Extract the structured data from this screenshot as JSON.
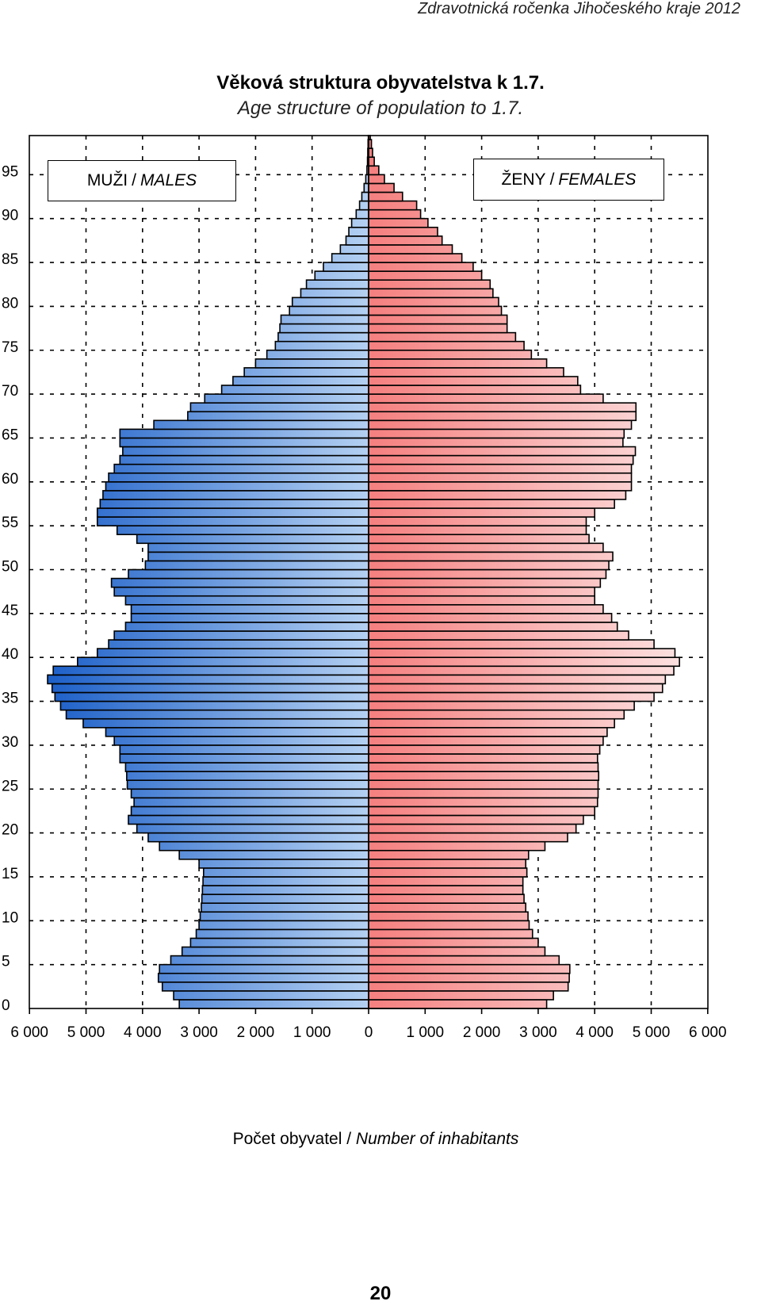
{
  "header": "Zdravotnická ročenka Jihočeského kraje 2012",
  "title": "Věková struktura obyvatelstva k 1.7.",
  "subtitle": "Age structure of population to 1.7.",
  "legend": {
    "males_cz": "MUŽI",
    "sep": "/",
    "males_en": "MALES",
    "females_cz": "ŽENY",
    "females_en": "FEMALES"
  },
  "xlabel": {
    "cz": "Počet obyvatel",
    "sep": "/",
    "en": "Number of inhabitants"
  },
  "page_number": "20",
  "colors": {
    "male_dark": "#1c5fc8",
    "male_light": "#b4d0f2",
    "female_dark": "#f57f7f",
    "female_light": "#fde3e3"
  },
  "chart_data": {
    "type": "bar",
    "orientation": "horizontal",
    "title": "Věková struktura obyvatelstva k 1.7.",
    "xlabel": "Počet obyvatel / Number of inhabitants",
    "ylabel": "",
    "xlim": [
      -6000,
      6000
    ],
    "ylim": [
      0,
      99
    ],
    "grid": true,
    "x_ticks": [
      -6000,
      -5000,
      -4000,
      -3000,
      -2000,
      -1000,
      0,
      1000,
      2000,
      3000,
      4000,
      5000,
      6000
    ],
    "x_tick_labels": [
      "6 000",
      "5 000",
      "4 000",
      "3 000",
      "2 000",
      "1 000",
      "0",
      "1 000",
      "2 000",
      "3 000",
      "4 000",
      "5 000",
      "6 000"
    ],
    "y_ticks": [
      0,
      5,
      10,
      15,
      20,
      25,
      30,
      35,
      40,
      45,
      50,
      55,
      60,
      65,
      70,
      75,
      80,
      85,
      90,
      95
    ],
    "categories": [
      0,
      1,
      2,
      3,
      4,
      5,
      6,
      7,
      8,
      9,
      10,
      11,
      12,
      13,
      14,
      15,
      16,
      17,
      18,
      19,
      20,
      21,
      22,
      23,
      24,
      25,
      26,
      27,
      28,
      29,
      30,
      31,
      32,
      33,
      34,
      35,
      36,
      37,
      38,
      39,
      40,
      41,
      42,
      43,
      44,
      45,
      46,
      47,
      48,
      49,
      50,
      51,
      52,
      53,
      54,
      55,
      56,
      57,
      58,
      59,
      60,
      61,
      62,
      63,
      64,
      65,
      66,
      67,
      68,
      69,
      70,
      71,
      72,
      73,
      74,
      75,
      76,
      77,
      78,
      79,
      80,
      81,
      82,
      83,
      84,
      85,
      86,
      87,
      88,
      89,
      90,
      91,
      92,
      93,
      94,
      95,
      96,
      97,
      98,
      99
    ],
    "series": [
      {
        "name": "MUŽI / MALES",
        "values": [
          3350,
          3450,
          3650,
          3720,
          3700,
          3500,
          3300,
          3150,
          3050,
          3000,
          2980,
          2960,
          2950,
          2940,
          2930,
          2920,
          3000,
          3350,
          3700,
          3900,
          4100,
          4250,
          4200,
          4150,
          4200,
          4270,
          4280,
          4300,
          4400,
          4400,
          4500,
          4650,
          5050,
          5350,
          5450,
          5550,
          5600,
          5680,
          5580,
          5150,
          4800,
          4600,
          4500,
          4300,
          4200,
          4200,
          4300,
          4500,
          4550,
          4250,
          3950,
          3900,
          3900,
          4100,
          4450,
          4800,
          4800,
          4750,
          4700,
          4650,
          4600,
          4500,
          4400,
          4350,
          4400,
          4400,
          3800,
          3200,
          3150,
          2900,
          2600,
          2400,
          2200,
          2000,
          1800,
          1650,
          1600,
          1570,
          1550,
          1400,
          1350,
          1200,
          1100,
          950,
          800,
          650,
          500,
          400,
          350,
          300,
          220,
          160,
          120,
          80,
          50,
          30,
          20,
          15,
          10,
          5
        ]
      },
      {
        "name": "ŽENY / FEMALES",
        "values": [
          3150,
          3270,
          3530,
          3550,
          3560,
          3370,
          3120,
          3000,
          2900,
          2840,
          2820,
          2780,
          2750,
          2730,
          2730,
          2800,
          2780,
          2830,
          3120,
          3520,
          3670,
          3800,
          4000,
          4050,
          4060,
          4060,
          4070,
          4060,
          4050,
          4090,
          4150,
          4220,
          4350,
          4520,
          4700,
          5050,
          5200,
          5250,
          5400,
          5500,
          5420,
          5050,
          4600,
          4400,
          4300,
          4150,
          4000,
          4000,
          4100,
          4200,
          4250,
          4320,
          4150,
          3900,
          3850,
          3850,
          4000,
          4350,
          4550,
          4650,
          4650,
          4650,
          4680,
          4720,
          4500,
          4520,
          4650,
          4730,
          4730,
          4150,
          3750,
          3700,
          3450,
          3150,
          2880,
          2750,
          2600,
          2450,
          2450,
          2350,
          2300,
          2200,
          2150,
          2000,
          1850,
          1650,
          1480,
          1300,
          1220,
          1050,
          920,
          850,
          600,
          450,
          280,
          180,
          100,
          70,
          50,
          30
        ]
      }
    ]
  }
}
